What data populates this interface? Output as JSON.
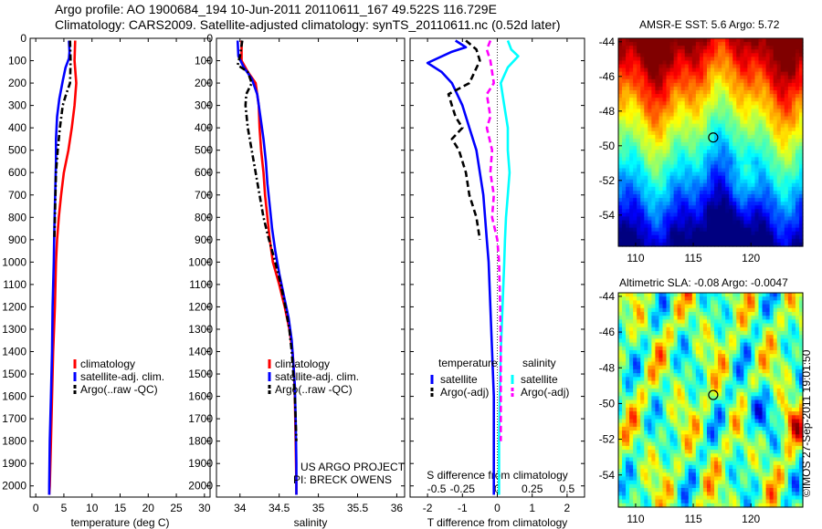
{
  "header": {
    "line1": "Argo profile: AO 1900684_194 10-Jun-2011 20110611_167 49.522S 116.729E",
    "line2": "Climatology: CARS2009. Satellite-adjusted climatology: synTS_20110611.nc (0.52d later)"
  },
  "colors": {
    "climatology": "#ff0000",
    "satellite": "#0000ff",
    "argo": "#000000",
    "sat_salinity": "#00ffff",
    "argo_salinity": "#ff00ff"
  },
  "chart_data": [
    {
      "type": "line",
      "ylabel": "",
      "xlabel": "temperature (deg C)",
      "ylim": [
        2050,
        0
      ],
      "xlim": [
        -1,
        31
      ],
      "y_ticks": [
        0,
        100,
        200,
        300,
        400,
        500,
        600,
        700,
        800,
        900,
        1000,
        1100,
        1200,
        1300,
        1400,
        1500,
        1600,
        1700,
        1800,
        1900,
        2000
      ],
      "x_ticks": [
        0,
        5,
        10,
        15,
        20,
        25,
        30
      ],
      "legend": [
        "climatology",
        "satellite-adj. clim.",
        "Argo(..raw -QC)"
      ],
      "legend_placement": "bottom-right",
      "series": [
        {
          "name": "climatology",
          "color": "#ff0000",
          "dash": "solid",
          "points": [
            [
              7.0,
              10
            ],
            [
              6.9,
              100
            ],
            [
              7.2,
              200
            ],
            [
              6.9,
              300
            ],
            [
              6.4,
              400
            ],
            [
              5.8,
              500
            ],
            [
              5.0,
              600
            ],
            [
              4.5,
              700
            ],
            [
              4.1,
              800
            ],
            [
              3.8,
              900
            ],
            [
              3.6,
              1000
            ],
            [
              3.4,
              1200
            ],
            [
              3.1,
              1400
            ],
            [
              2.9,
              1600
            ],
            [
              2.7,
              1800
            ],
            [
              2.5,
              2000
            ],
            [
              2.4,
              2040
            ]
          ]
        },
        {
          "name": "satellite-adj. clim.",
          "color": "#0000ff",
          "dash": "solid",
          "points": [
            [
              5.9,
              10
            ],
            [
              6.0,
              60
            ],
            [
              5.9,
              90
            ],
            [
              5.3,
              130
            ],
            [
              4.8,
              190
            ],
            [
              4.2,
              270
            ],
            [
              3.8,
              350
            ],
            [
              3.6,
              450
            ],
            [
              3.6,
              550
            ],
            [
              3.5,
              650
            ],
            [
              3.4,
              750
            ],
            [
              3.3,
              850
            ],
            [
              3.2,
              1000
            ],
            [
              3.0,
              1200
            ],
            [
              2.9,
              1400
            ],
            [
              2.7,
              1600
            ],
            [
              2.5,
              1800
            ],
            [
              2.4,
              2000
            ],
            [
              2.4,
              2040
            ]
          ]
        },
        {
          "name": "Argo(..raw -QC)",
          "color": "#000000",
          "dash": "dashdot",
          "points": [
            [
              6.1,
              10
            ],
            [
              6.2,
              100
            ],
            [
              6.1,
              200
            ],
            [
              5.4,
              250
            ],
            [
              4.8,
              300
            ],
            [
              4.3,
              400
            ],
            [
              3.9,
              500
            ],
            [
              3.6,
              600
            ],
            [
              3.5,
              700
            ],
            [
              3.4,
              800
            ],
            [
              3.3,
              900
            ]
          ]
        }
      ]
    },
    {
      "type": "line",
      "ylabel": "",
      "xlabel": "salinity",
      "ylim": [
        2050,
        0
      ],
      "xlim": [
        33.7,
        36.1
      ],
      "x_ticks": [
        34,
        34.5,
        35,
        35.5,
        36
      ],
      "legend": [
        "climatology",
        "satellite-adj. clim.",
        "Argo(..raw -QC)"
      ],
      "legend_placement": "bottom-right",
      "annotation": [
        "US ARGO PROJECT",
        "PI: BRECK OWENS"
      ],
      "series": [
        {
          "name": "climatology",
          "color": "#ff0000",
          "dash": "solid",
          "points": [
            [
              34.02,
              10
            ],
            [
              34.02,
              100
            ],
            [
              34.1,
              150
            ],
            [
              34.2,
              200
            ],
            [
              34.22,
              250
            ],
            [
              34.24,
              300
            ],
            [
              34.25,
              400
            ],
            [
              34.27,
              500
            ],
            [
              34.3,
              600
            ],
            [
              34.32,
              700
            ],
            [
              34.35,
              800
            ],
            [
              34.38,
              900
            ],
            [
              34.42,
              1000
            ],
            [
              34.5,
              1100
            ],
            [
              34.57,
              1200
            ],
            [
              34.63,
              1300
            ],
            [
              34.67,
              1400
            ],
            [
              34.69,
              1500
            ],
            [
              34.7,
              1600
            ],
            [
              34.71,
              1800
            ],
            [
              34.72,
              2000
            ],
            [
              34.72,
              2040
            ]
          ]
        },
        {
          "name": "satellite-adj. clim.",
          "color": "#0000ff",
          "dash": "solid",
          "points": [
            [
              33.97,
              10
            ],
            [
              33.98,
              80
            ],
            [
              34.05,
              130
            ],
            [
              34.15,
              180
            ],
            [
              34.22,
              250
            ],
            [
              34.26,
              350
            ],
            [
              34.3,
              450
            ],
            [
              34.33,
              550
            ],
            [
              34.35,
              650
            ],
            [
              34.38,
              750
            ],
            [
              34.41,
              850
            ],
            [
              34.45,
              950
            ],
            [
              34.5,
              1050
            ],
            [
              34.56,
              1150
            ],
            [
              34.62,
              1250
            ],
            [
              34.66,
              1350
            ],
            [
              34.68,
              1450
            ],
            [
              34.7,
              1550
            ],
            [
              34.71,
              1700
            ],
            [
              34.72,
              1900
            ],
            [
              34.72,
              2040
            ]
          ]
        },
        {
          "name": "Argo(..raw -QC)",
          "color": "#000000",
          "dash": "dashdot",
          "points": [
            [
              34.03,
              10
            ],
            [
              34.0,
              80
            ],
            [
              33.97,
              120
            ],
            [
              34.1,
              150
            ],
            [
              34.15,
              200
            ],
            [
              34.08,
              250
            ],
            [
              34.07,
              300
            ],
            [
              34.1,
              400
            ],
            [
              34.15,
              500
            ],
            [
              34.2,
              600
            ],
            [
              34.25,
              700
            ],
            [
              34.3,
              800
            ],
            [
              34.37,
              900
            ],
            [
              34.45,
              1000
            ],
            [
              34.52,
              1100
            ],
            [
              34.58,
              1200
            ],
            [
              34.63,
              1300
            ],
            [
              34.66,
              1400
            ],
            [
              34.68,
              1500
            ],
            [
              34.7,
              1600
            ],
            [
              34.71,
              1700
            ],
            [
              34.72,
              1800
            ]
          ]
        }
      ]
    },
    {
      "type": "line",
      "xlabel": "T difference from climatology",
      "xlabel_top": "S difference from climatology",
      "ylim": [
        2050,
        0
      ],
      "xlim": [
        -2.5,
        2.5
      ],
      "x_ticks": [
        -2,
        -1,
        0,
        1,
        2
      ],
      "x_ticks_top": [
        "-0.5",
        "-0.25",
        "0",
        "0.25",
        "0.5"
      ],
      "legend_groups": [
        {
          "title": "temperature",
          "entries": [
            "satellite",
            "Argo(-adj)"
          ]
        },
        {
          "title": "salinity",
          "entries": [
            "satellite",
            "Argo(-adj)"
          ]
        }
      ],
      "legend_placement": "bottom",
      "series": [
        {
          "name": "satellite",
          "group": "temperature",
          "color": "#0000ff",
          "dash": "solid",
          "points": [
            [
              -1.2,
              10
            ],
            [
              -0.9,
              40
            ],
            [
              -1.3,
              60
            ],
            [
              -2.0,
              110
            ],
            [
              -1.6,
              150
            ],
            [
              -1.3,
              200
            ],
            [
              -1.0,
              300
            ],
            [
              -0.8,
              400
            ],
            [
              -0.6,
              500
            ],
            [
              -0.5,
              600
            ],
            [
              -0.4,
              700
            ],
            [
              -0.35,
              800
            ],
            [
              -0.3,
              900
            ],
            [
              -0.25,
              1000
            ],
            [
              -0.2,
              1200
            ],
            [
              -0.15,
              1400
            ],
            [
              -0.1,
              1600
            ],
            [
              -0.1,
              1800
            ],
            [
              -0.1,
              2000
            ],
            [
              -0.1,
              2040
            ]
          ]
        },
        {
          "name": "Argo(-adj)",
          "group": "temperature",
          "color": "#000000",
          "dash": "dash",
          "points": [
            [
              -0.9,
              10
            ],
            [
              -0.6,
              50
            ],
            [
              -0.5,
              100
            ],
            [
              -0.8,
              200
            ],
            [
              -1.4,
              250
            ],
            [
              -1.3,
              300
            ],
            [
              -1.2,
              350
            ],
            [
              -1.0,
              400
            ],
            [
              -1.3,
              450
            ],
            [
              -1.1,
              500
            ],
            [
              -0.9,
              600
            ],
            [
              -0.8,
              700
            ],
            [
              -0.6,
              800
            ],
            [
              -0.5,
              900
            ]
          ]
        },
        {
          "name": "satellite",
          "group": "salinity",
          "color": "#00ffff",
          "dash": "solid",
          "points": [
            [
              0.3,
              10
            ],
            [
              0.4,
              50
            ],
            [
              0.6,
              80
            ],
            [
              0.3,
              130
            ],
            [
              0.1,
              200
            ],
            [
              0.2,
              300
            ],
            [
              0.3,
              400
            ],
            [
              0.3,
              500
            ],
            [
              0.35,
              600
            ],
            [
              0.3,
              700
            ],
            [
              0.25,
              800
            ],
            [
              0.22,
              900
            ],
            [
              0.2,
              1000
            ],
            [
              0.15,
              1200
            ],
            [
              0.1,
              1400
            ],
            [
              0.07,
              1600
            ],
            [
              0.05,
              1800
            ],
            [
              0.05,
              2040
            ]
          ]
        },
        {
          "name": "Argo(-adj)",
          "group": "salinity",
          "color": "#ff00ff",
          "dash": "dash",
          "points": [
            [
              -0.2,
              10
            ],
            [
              -0.3,
              50
            ],
            [
              -0.2,
              100
            ],
            [
              -0.1,
              200
            ],
            [
              -0.3,
              250
            ],
            [
              -0.2,
              350
            ],
            [
              -0.3,
              400
            ],
            [
              -0.15,
              500
            ],
            [
              -0.2,
              600
            ],
            [
              -0.1,
              700
            ],
            [
              -0.15,
              800
            ],
            [
              0,
              900
            ],
            [
              0.05,
              1000
            ],
            [
              0.08,
              1200
            ],
            [
              0.1,
              1400
            ],
            [
              0.1,
              1600
            ],
            [
              0.1,
              1800
            ]
          ]
        }
      ]
    },
    {
      "type": "heatmap",
      "title": "AMSR-E SST: 5.6 Argo: 5.72",
      "xlim": [
        108.5,
        124.5
      ],
      "ylim": [
        -55.8,
        -43.8
      ],
      "x_ticks": [
        110,
        115,
        120
      ],
      "y_ticks": [
        -44,
        -46,
        -48,
        -50,
        -52,
        -54
      ],
      "marker": {
        "lon": 116.729,
        "lat": -49.522
      },
      "colormap": "jet"
    },
    {
      "type": "heatmap",
      "title": "Altimetric SLA: -0.08 Argo: -0.0047",
      "xlim": [
        108.5,
        124.5
      ],
      "ylim": [
        -55.8,
        -43.8
      ],
      "x_ticks": [
        110,
        115,
        120
      ],
      "y_ticks": [
        -44,
        -46,
        -48,
        -50,
        -52,
        -54
      ],
      "marker": {
        "lon": 116.729,
        "lat": -49.522
      },
      "colormap": "jet"
    }
  ],
  "credit": "©IMOS 27-Sep-2011 19:01:50"
}
